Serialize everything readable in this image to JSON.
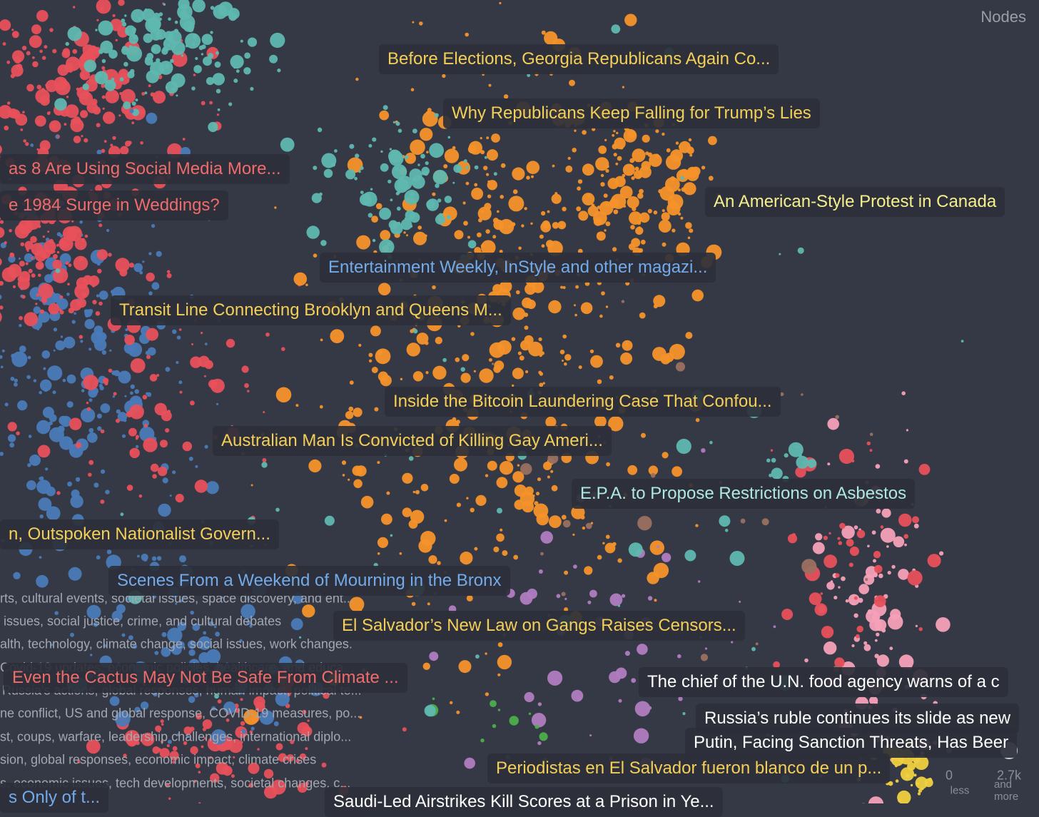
{
  "header": {
    "title": "Nodes"
  },
  "labels": [
    {
      "text": "Before Elections, Georgia Republicans Again Co...",
      "color": "#f4cf58"
    },
    {
      "text": "Why Republicans Keep Falling for Trump’s Lies",
      "color": "#f4cf58"
    },
    {
      "text": "as 8 Are Using Social Media More...",
      "color": "#f06b6b"
    },
    {
      "text": "e 1984 Surge in Weddings?",
      "color": "#f06b6b"
    },
    {
      "text": "An American-Style Protest in Canada",
      "color": "#f5ef8c"
    },
    {
      "text": "Entertainment Weekly, InStyle and other magazi...",
      "color": "#72aaea"
    },
    {
      "text": "Transit Line Connecting Brooklyn and Queens M...",
      "color": "#f4cf58"
    },
    {
      "text": "Inside the Bitcoin Laundering Case That Confou...",
      "color": "#f4cf58"
    },
    {
      "text": "Australian Man Is Convicted of Killing Gay Ameri...",
      "color": "#f4cf58"
    },
    {
      "text": "E.P.A. to Propose Restrictions on Asbestos",
      "color": "#aee8e2"
    },
    {
      "text": "n, Outspoken Nationalist Govern...",
      "color": "#f4cf58"
    },
    {
      "text": "Scenes From a Weekend of Mourning in the Bronx",
      "color": "#72aaea"
    },
    {
      "text": "El Salvador’s New Law on Gangs Raises Censors...",
      "color": "#f4cf58"
    },
    {
      "text": "Even the Cactus May Not Be Safe From Climate ...",
      "color": "#f06b6b"
    },
    {
      "text": "The chief of the U.N. food agency warns of a c",
      "color": "#ffffff"
    },
    {
      "text": "Russia’s ruble continues its slide as new",
      "color": "#ffffff"
    },
    {
      "text": "Putin, Facing Sanction Threats, Has Beer",
      "color": "#ffffff"
    },
    {
      "text": "Periodistas en El Salvador fueron blanco de un p...",
      "color": "#f4cf58"
    },
    {
      "text": "s Only of t...",
      "color": "#72aaea"
    },
    {
      "text": "Saudi-Led Airstrikes Kill Scores at a Prison in Ye...",
      "color": "#ffffff"
    }
  ],
  "clusters": [
    "rts, cultural events, societal issues, space discovery, and ent...",
    "issues, social justice, crime, and cultural debates",
    "alth, technology, climate change, social issues, work changes.",
    "Covid-19 updates, economic policies, healthcare, and educa...",
    "Russia's actions, global responses, human impact, political te...",
    "ne conflict, US and global response, COVID-19 measures, po...",
    "st, coups, warfare, leadership challenges, international diplo...",
    "sion, global responses, economic impact, climate crises",
    "s, economic issues, tech developments, societal changes, c..."
  ],
  "legend": {
    "min": 0,
    "min_caption": "less",
    "max": {
      "value": 2700,
      "label": "2.7k"
    },
    "max_caption": "and more"
  }
}
